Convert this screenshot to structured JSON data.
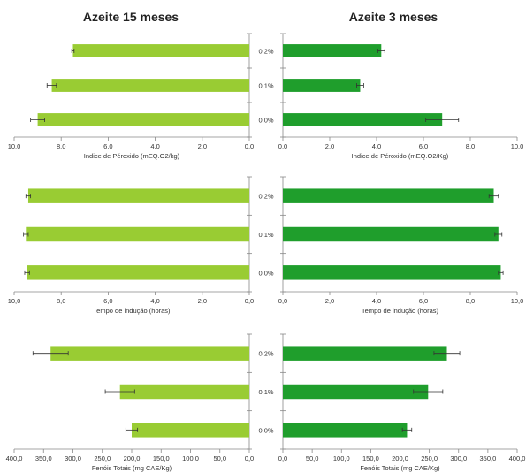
{
  "colors": {
    "left_bar": "#99cc33",
    "right_bar": "#1f9e2c",
    "axis": "#888888",
    "error": "#333333"
  },
  "chart_data": [
    {
      "type": "bar",
      "orientation": "horizontal",
      "title": "Azeite 15 meses",
      "xlabel": "Indice de Péroxido (mEQ.O2/kg)",
      "categories": [
        "0,2%",
        "0,1%",
        "0,0%"
      ],
      "values": [
        7.5,
        8.4,
        9.0
      ],
      "errors": [
        0.05,
        0.2,
        0.3
      ],
      "xlim": [
        10,
        0
      ],
      "ticks": [
        "10,0",
        "8,0",
        "6,0",
        "4,0",
        "2,0",
        "0,0"
      ],
      "tick_values": [
        10,
        8,
        6,
        4,
        2,
        0
      ],
      "color": "#99cc33"
    },
    {
      "type": "bar",
      "orientation": "horizontal",
      "title": "Azeite 3 meses",
      "xlabel": "Indice de Péroxido (mEQ.O2/Kg)",
      "categories": [
        "0,2%",
        "0,1%",
        "0,0%"
      ],
      "values": [
        4.2,
        3.3,
        6.8
      ],
      "errors": [
        0.15,
        0.15,
        0.7
      ],
      "xlim": [
        0,
        10
      ],
      "ticks": [
        "0,0",
        "2,0",
        "4,0",
        "6,0",
        "8,0",
        "10,0"
      ],
      "tick_values": [
        0,
        2,
        4,
        6,
        8,
        10
      ],
      "color": "#1f9e2c"
    },
    {
      "type": "bar",
      "orientation": "horizontal",
      "xlabel": "Tempo de indução (horas)",
      "categories": [
        "0,2%",
        "0,1%",
        "0,0%"
      ],
      "values": [
        9.4,
        9.5,
        9.45
      ],
      "errors": [
        0.1,
        0.1,
        0.1
      ],
      "xlim": [
        10,
        0
      ],
      "ticks": [
        "10,0",
        "8,0",
        "6,0",
        "4,0",
        "2,0",
        "0,0"
      ],
      "tick_values": [
        10,
        8,
        6,
        4,
        2,
        0
      ],
      "color": "#99cc33"
    },
    {
      "type": "bar",
      "orientation": "horizontal",
      "xlabel": "Tempo de indução (horas)",
      "categories": [
        "0,2%",
        "0,1%",
        "0,0%"
      ],
      "values": [
        9.0,
        9.2,
        9.3
      ],
      "errors": [
        0.2,
        0.15,
        0.1
      ],
      "xlim": [
        0,
        10
      ],
      "ticks": [
        "0,0",
        "2,0",
        "4,0",
        "6,0",
        "8,0",
        "10,0"
      ],
      "tick_values": [
        0,
        2,
        4,
        6,
        8,
        10
      ],
      "color": "#1f9e2c"
    },
    {
      "type": "bar",
      "orientation": "horizontal",
      "xlabel": "Fenóis Totais (mg CAE/Kg)",
      "categories": [
        "0,2%",
        "0,1%",
        "0,0%"
      ],
      "values": [
        338,
        220,
        200
      ],
      "errors": [
        30,
        25,
        10
      ],
      "xlim": [
        400,
        0
      ],
      "ticks": [
        "400,0",
        "350,0",
        "300,0",
        "250,0",
        "200,0",
        "150,0",
        "100,0",
        "50,0",
        "0,0"
      ],
      "tick_values": [
        400,
        350,
        300,
        250,
        200,
        150,
        100,
        50,
        0
      ],
      "color": "#99cc33"
    },
    {
      "type": "bar",
      "orientation": "horizontal",
      "xlabel": "Fenóis Totais (mg CAE/Kg)",
      "categories": [
        "0,2%",
        "0,1%",
        "0,0%"
      ],
      "values": [
        280,
        248,
        212
      ],
      "errors": [
        22,
        25,
        8
      ],
      "xlim": [
        0,
        400
      ],
      "ticks": [
        "0,0",
        "50,0",
        "100,0",
        "150,0",
        "200,0",
        "250,0",
        "300,0",
        "350,0",
        "400,0"
      ],
      "tick_values": [
        0,
        50,
        100,
        150,
        200,
        250,
        300,
        350,
        400
      ],
      "color": "#1f9e2c"
    }
  ]
}
